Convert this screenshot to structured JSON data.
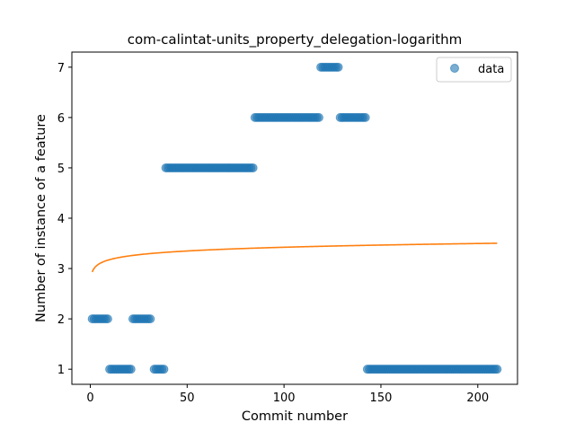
{
  "chart_data": {
    "type": "scatter",
    "title": "com-calintat-units_property_delegation-logarithm",
    "xlabel": "Commit number",
    "ylabel": "Number of instance of a feature",
    "xlim": [
      -9.5,
      220.5
    ],
    "ylim": [
      0.7,
      7.3
    ],
    "xticks": [
      0,
      50,
      100,
      150,
      200
    ],
    "yticks": [
      1,
      2,
      3,
      4,
      5,
      6,
      7
    ],
    "grid": false,
    "legend": {
      "position": "top-right",
      "entries": [
        "data"
      ]
    },
    "colors": {
      "data": "#1f77b4",
      "fit": "#ff7f0e"
    },
    "series": [
      {
        "name": "data",
        "kind": "scatter",
        "segments": [
          {
            "x_start": 1,
            "x_end": 9,
            "y": 2
          },
          {
            "x_start": 10,
            "x_end": 21,
            "y": 1
          },
          {
            "x_start": 22,
            "x_end": 31,
            "y": 2
          },
          {
            "x_start": 33,
            "x_end": 38,
            "y": 1
          },
          {
            "x_start": 39,
            "x_end": 84,
            "y": 5
          },
          {
            "x_start": 85,
            "x_end": 118,
            "y": 6
          },
          {
            "x_start": 119,
            "x_end": 128,
            "y": 7
          },
          {
            "x_start": 129,
            "x_end": 142,
            "y": 6
          },
          {
            "x_start": 143,
            "x_end": 210,
            "y": 1
          }
        ]
      },
      {
        "kind": "line",
        "model": "logarithmic",
        "x_range": [
          1,
          210
        ],
        "a": 2.93,
        "b": 0.107
      }
    ]
  }
}
